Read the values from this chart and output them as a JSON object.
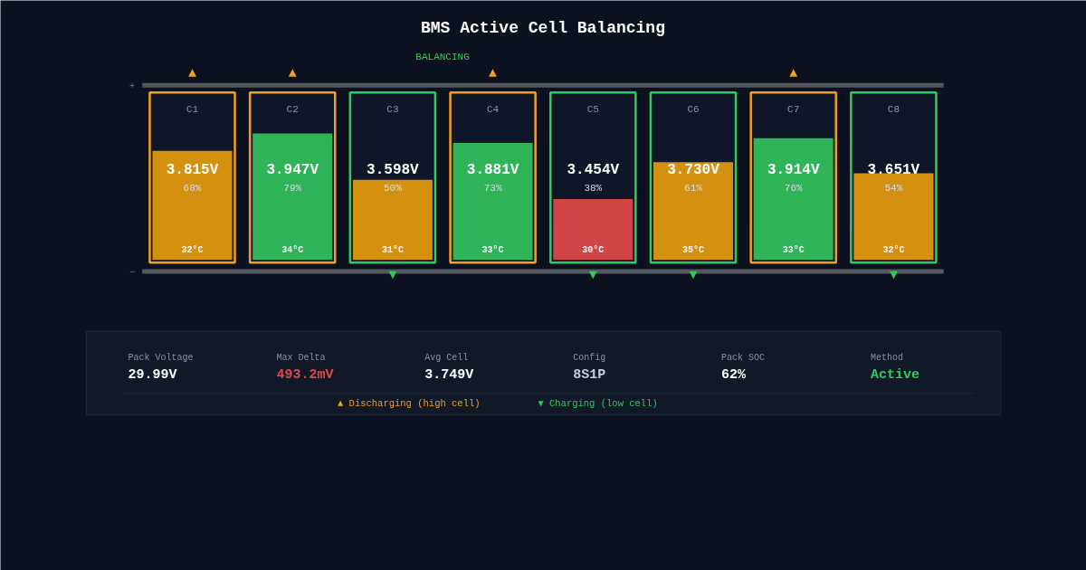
{
  "chart_data": {
    "type": "bar",
    "title": "BMS Active Cell Balancing",
    "categories": [
      "C1",
      "C2",
      "C3",
      "C4",
      "C5",
      "C6",
      "C7",
      "C8"
    ],
    "values": [
      68,
      79,
      50,
      73,
      38,
      61,
      76,
      54
    ],
    "colors": [
      "#d4900f",
      "#2fb457",
      "#d4900f",
      "#2fb457",
      "#d04545",
      "#d4900f",
      "#2fb457",
      "#d4900f"
    ],
    "value_labels": [
      "68%",
      "79%",
      "50%",
      "73%",
      "38%",
      "61%",
      "76%",
      "54%"
    ],
    "tick_labels": false,
    "grid": false,
    "annotations": [
      "3.815V",
      "3.947V",
      "3.598V",
      "3.881V",
      "3.454V",
      "3.730V",
      "3.914V",
      "3.651V",
      "32°C",
      "34°C",
      "31°C",
      "33°C",
      "30°C",
      "35°C",
      "33°C",
      "32°C",
      "▲",
      "▲",
      "▼",
      "▲",
      "▼",
      "▼",
      "▲",
      "▼",
      "BALANCING",
      "+",
      "−",
      "Pack Voltage",
      "29.99V",
      "Max Delta",
      "493.2mV",
      "Avg Cell",
      "3.749V",
      "Config",
      "8S1P",
      "Pack SOC",
      "62%",
      "Method",
      "Active",
      "▲ Discharging (high cell)",
      "▼ Charging (low cell)"
    ]
  }
}
